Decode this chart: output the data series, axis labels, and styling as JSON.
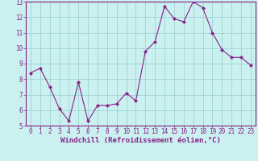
{
  "x": [
    0,
    1,
    2,
    3,
    4,
    5,
    6,
    7,
    8,
    9,
    10,
    11,
    12,
    13,
    14,
    15,
    16,
    17,
    18,
    19,
    20,
    21,
    22,
    23
  ],
  "y": [
    8.4,
    8.7,
    7.5,
    6.1,
    5.3,
    7.8,
    5.3,
    6.3,
    6.3,
    6.4,
    7.1,
    6.6,
    9.8,
    10.4,
    12.7,
    11.9,
    11.7,
    13.0,
    12.6,
    11.0,
    9.9,
    9.4,
    9.4,
    8.9
  ],
  "line_color": "#882288",
  "marker": "D",
  "markersize": 2.0,
  "linewidth": 0.8,
  "background_color": "#caf0f0",
  "grid_color": "#99cccc",
  "xlabel": "Windchill (Refroidissement éolien,°C)",
  "xlabel_color": "#882288",
  "xlabel_fontsize": 6.5,
  "ylim": [
    5,
    13
  ],
  "xlim_min": -0.5,
  "xlim_max": 23.5,
  "yticks": [
    5,
    6,
    7,
    8,
    9,
    10,
    11,
    12,
    13
  ],
  "xticks": [
    0,
    1,
    2,
    3,
    4,
    5,
    6,
    7,
    8,
    9,
    10,
    11,
    12,
    13,
    14,
    15,
    16,
    17,
    18,
    19,
    20,
    21,
    22,
    23
  ],
  "tick_color": "#882288",
  "tick_fontsize": 5.5,
  "spine_color": "#882288",
  "spine_linewidth": 0.8
}
